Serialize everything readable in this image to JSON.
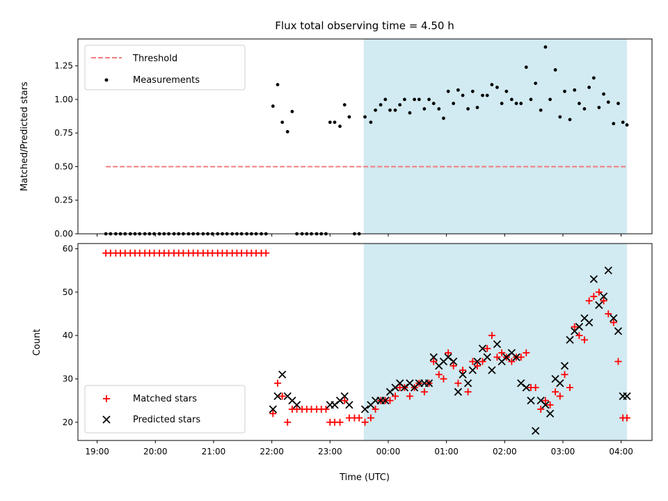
{
  "chart_data": {
    "title": "Flux total observing time = 4.50 h",
    "xlabel": "Time (UTC)",
    "x_tick_labels": [
      "19:00",
      "20:00",
      "21:00",
      "22:00",
      "23:00",
      "00:00",
      "01:00",
      "02:00",
      "03:00",
      "04:00"
    ],
    "x_tick_values": [
      19.0,
      20.0,
      21.0,
      22.0,
      23.0,
      24.0,
      25.0,
      26.0,
      27.0,
      28.0
    ],
    "xlim": [
      18.67,
      28.53
    ],
    "shaded_interval": [
      23.58,
      28.1
    ],
    "shade_color": "#d2eaf1",
    "panels": [
      {
        "type": "scatter",
        "ylabel": "Matched/Predicted stars",
        "ylim": [
          0,
          1.45
        ],
        "y_ticks": [
          0.0,
          0.25,
          0.5,
          0.75,
          1.0,
          1.25
        ],
        "y_tick_labels": [
          "0.00",
          "0.25",
          "0.50",
          "0.75",
          "1.00",
          "1.25"
        ],
        "legend_position": "upper-left",
        "threshold": {
          "name": "Threshold",
          "y": 0.5,
          "x_range": [
            19.15,
            28.1
          ],
          "color": "#f07c7c"
        },
        "series": [
          {
            "name": "Measurements",
            "marker": "dot",
            "color": "#000000",
            "x": [
              19.15,
              19.23,
              19.32,
              19.4,
              19.48,
              19.57,
              19.65,
              19.73,
              19.82,
              19.9,
              19.98,
              20.07,
              20.15,
              20.23,
              20.32,
              20.4,
              20.48,
              20.57,
              20.65,
              20.73,
              20.82,
              20.9,
              20.98,
              21.07,
              21.15,
              21.23,
              21.32,
              21.4,
              21.48,
              21.57,
              21.65,
              21.73,
              21.82,
              21.9,
              22.02,
              22.1,
              22.18,
              22.27,
              22.35,
              22.43,
              22.52,
              22.6,
              22.68,
              22.77,
              22.85,
              22.93,
              23.0,
              23.08,
              23.17,
              23.25,
              23.33,
              23.42,
              23.5,
              23.6,
              23.7,
              23.78,
              23.87,
              23.95,
              24.03,
              24.12,
              24.2,
              24.28,
              24.37,
              24.45,
              24.53,
              24.62,
              24.7,
              24.78,
              24.87,
              24.95,
              25.03,
              25.12,
              25.2,
              25.28,
              25.37,
              25.45,
              25.53,
              25.62,
              25.7,
              25.78,
              25.87,
              25.95,
              26.03,
              26.12,
              26.2,
              26.28,
              26.37,
              26.45,
              26.53,
              26.62,
              26.7,
              26.78,
              26.87,
              26.95,
              27.03,
              27.12,
              27.2,
              27.28,
              27.37,
              27.45,
              27.53,
              27.62,
              27.7,
              27.78,
              27.87,
              27.95,
              28.03,
              28.1
            ],
            "y": [
              0,
              0,
              0,
              0,
              0,
              0,
              0,
              0,
              0,
              0,
              0,
              0,
              0,
              0,
              0,
              0,
              0,
              0,
              0,
              0,
              0,
              0,
              0,
              0,
              0,
              0,
              0,
              0,
              0,
              0,
              0,
              0,
              0,
              0,
              0.95,
              1.11,
              0.83,
              0.76,
              0.91,
              0,
              0,
              0,
              0,
              0,
              0,
              0,
              0.83,
              0.83,
              0.8,
              0.96,
              0.87,
              0,
              0,
              0.87,
              0.83,
              0.92,
              0.96,
              1.0,
              0.92,
              0.92,
              0.96,
              1.0,
              0.9,
              1.0,
              1.0,
              0.93,
              1.0,
              0.97,
              0.93,
              0.86,
              1.06,
              0.97,
              1.07,
              1.03,
              0.93,
              1.06,
              0.94,
              1.03,
              1.03,
              1.11,
              1.09,
              0.97,
              1.06,
              1.0,
              0.97,
              0.97,
              1.24,
              1.0,
              1.12,
              0.92,
              1.39,
              1.0,
              1.22,
              0.87,
              1.06,
              0.85,
              1.07,
              0.97,
              0.93,
              1.09,
              1.16,
              0.94,
              1.04,
              0.98,
              0.82,
              0.97,
              0.83,
              0.81
            ]
          }
        ]
      },
      {
        "type": "scatter",
        "ylabel": "Count",
        "ylim": [
          15.8,
          61.2
        ],
        "y_ticks": [
          20,
          30,
          40,
          50,
          60
        ],
        "y_tick_labels": [
          "20",
          "30",
          "40",
          "50",
          "60"
        ],
        "legend_position": "lower-left",
        "series": [
          {
            "name": "Matched stars",
            "marker": "plus",
            "color": "#ff0000",
            "x": [
              19.15,
              19.23,
              19.32,
              19.4,
              19.48,
              19.57,
              19.65,
              19.73,
              19.82,
              19.9,
              19.98,
              20.07,
              20.15,
              20.23,
              20.32,
              20.4,
              20.48,
              20.57,
              20.65,
              20.73,
              20.82,
              20.9,
              20.98,
              21.07,
              21.15,
              21.23,
              21.32,
              21.4,
              21.48,
              21.57,
              21.65,
              21.73,
              21.82,
              21.9,
              22.02,
              22.1,
              22.18,
              22.27,
              22.35,
              22.43,
              22.52,
              22.6,
              22.68,
              22.77,
              22.85,
              22.93,
              23.0,
              23.08,
              23.17,
              23.25,
              23.33,
              23.42,
              23.5,
              23.6,
              23.7,
              23.78,
              23.87,
              23.95,
              24.03,
              24.12,
              24.2,
              24.28,
              24.37,
              24.45,
              24.53,
              24.62,
              24.7,
              24.78,
              24.87,
              24.95,
              25.03,
              25.12,
              25.2,
              25.28,
              25.37,
              25.45,
              25.53,
              25.62,
              25.7,
              25.78,
              25.87,
              25.95,
              26.03,
              26.12,
              26.2,
              26.28,
              26.37,
              26.45,
              26.53,
              26.62,
              26.7,
              26.78,
              26.87,
              26.95,
              27.03,
              27.12,
              27.2,
              27.28,
              27.37,
              27.45,
              27.53,
              27.62,
              27.7,
              27.78,
              27.87,
              27.95,
              28.03,
              28.1
            ],
            "y": [
              59,
              59,
              59,
              59,
              59,
              59,
              59,
              59,
              59,
              59,
              59,
              59,
              59,
              59,
              59,
              59,
              59,
              59,
              59,
              59,
              59,
              59,
              59,
              59,
              59,
              59,
              59,
              59,
              59,
              59,
              59,
              59,
              59,
              59,
              22,
              29,
              26,
              20,
              23,
              23,
              23,
              23,
              23,
              23,
              23,
              23,
              20,
              20,
              20,
              25,
              21,
              21,
              21,
              20,
              21,
              23,
              25,
              25,
              25,
              26,
              28,
              28,
              26,
              28,
              29,
              27,
              29,
              34,
              31,
              30,
              36,
              33,
              29,
              32,
              27,
              34,
              33,
              34,
              37,
              40,
              35,
              36,
              35,
              34,
              35,
              35,
              36,
              28,
              28,
              23,
              25,
              24,
              27,
              26,
              31,
              28,
              42,
              40,
              39,
              48,
              49,
              50,
              48,
              45,
              43,
              34,
              21,
              21
            ]
          },
          {
            "name": "Predicted stars",
            "marker": "x",
            "color": "#000000",
            "x": [
              22.02,
              22.1,
              22.18,
              22.27,
              22.35,
              22.43,
              23.0,
              23.08,
              23.17,
              23.25,
              23.33,
              23.6,
              23.7,
              23.78,
              23.87,
              23.95,
              24.03,
              24.12,
              24.2,
              24.28,
              24.37,
              24.45,
              24.53,
              24.62,
              24.7,
              24.78,
              24.87,
              24.95,
              25.03,
              25.12,
              25.2,
              25.28,
              25.37,
              25.45,
              25.53,
              25.62,
              25.7,
              25.78,
              25.87,
              25.95,
              26.03,
              26.12,
              26.2,
              26.28,
              26.37,
              26.45,
              26.53,
              26.62,
              26.7,
              26.78,
              26.87,
              26.95,
              27.03,
              27.12,
              27.2,
              27.28,
              27.37,
              27.45,
              27.53,
              27.62,
              27.7,
              27.78,
              27.87,
              27.95,
              28.03,
              28.1
            ],
            "y": [
              23,
              26,
              31,
              26,
              25,
              24,
              24,
              24,
              25,
              26,
              24,
              23,
              24,
              25,
              25,
              25,
              27,
              28,
              29,
              28,
              29,
              28,
              29,
              29,
              29,
              35,
              33,
              34,
              35,
              34,
              27,
              31,
              29,
              32,
              34,
              37,
              35,
              32,
              38,
              34,
              35,
              36,
              35,
              29,
              28,
              25,
              18,
              25,
              24,
              22,
              30,
              29,
              33,
              39,
              41,
              42,
              44,
              43,
              53,
              47,
              49,
              55,
              44,
              41,
              26,
              26
            ]
          }
        ]
      }
    ]
  }
}
